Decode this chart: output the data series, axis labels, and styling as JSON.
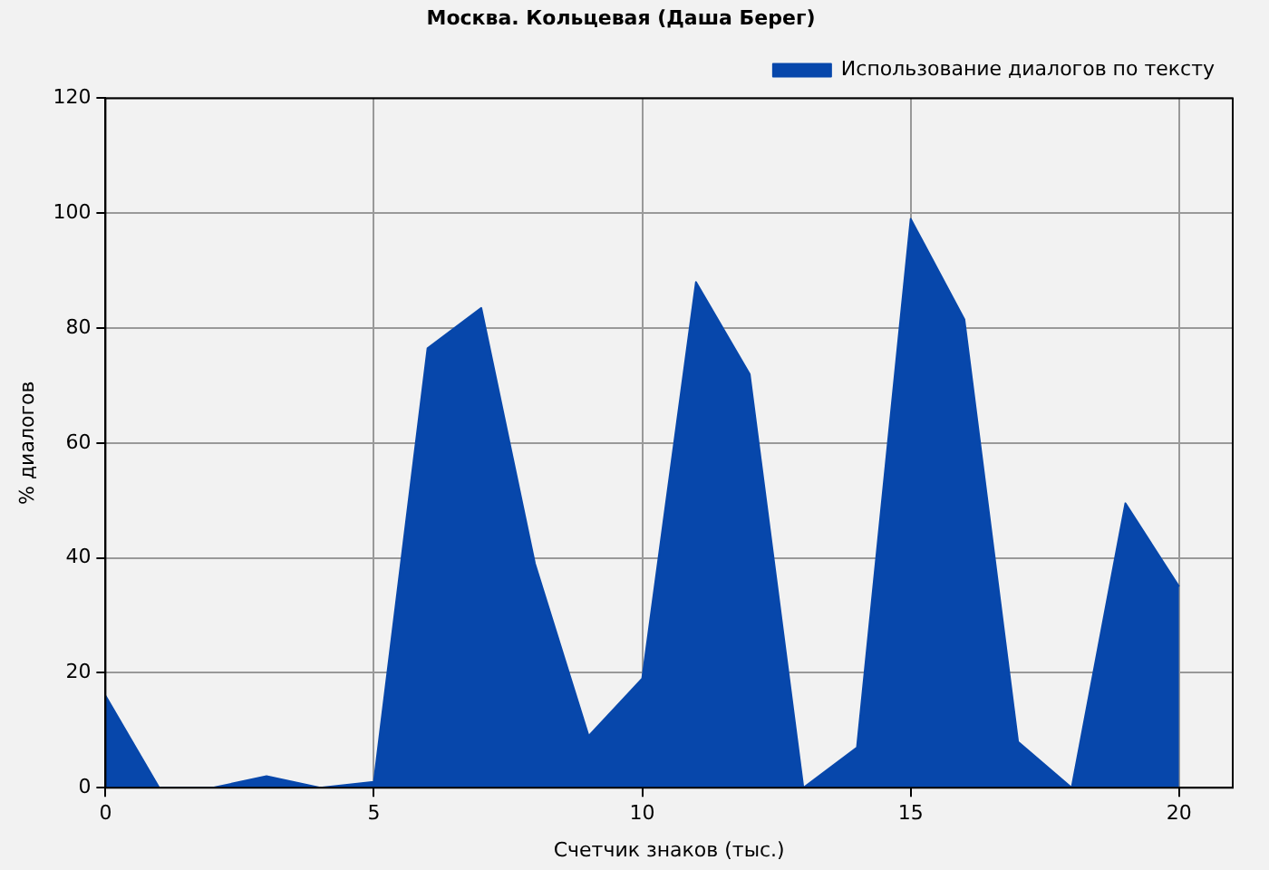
{
  "chart_data": {
    "type": "area",
    "title": "Москва. Кольцевая (Даша Берег)",
    "xlabel": "Счетчик знаков (тыс.)",
    "ylabel": "% диалогов",
    "x": [
      0,
      1,
      2,
      3,
      4,
      5,
      6,
      7,
      8,
      9,
      10,
      11,
      12,
      13,
      14,
      15,
      16,
      17,
      18,
      19,
      20
    ],
    "series": [
      {
        "name": "Использование диалогов по тексту",
        "color": "#0747ab",
        "values": [
          16,
          0,
          0,
          2,
          0,
          1,
          76.5,
          83.5,
          39,
          9,
          19,
          88,
          72,
          0,
          7,
          99,
          81.5,
          8,
          0,
          49.5,
          35
        ]
      }
    ],
    "xlim": [
      0,
      21
    ],
    "xticks": [
      0,
      5,
      10,
      15,
      20
    ],
    "ylim": [
      0,
      120
    ],
    "yticks": [
      0,
      20,
      40,
      60,
      80,
      100,
      120
    ],
    "grid": true,
    "legend": "top right",
    "marker": "none"
  }
}
